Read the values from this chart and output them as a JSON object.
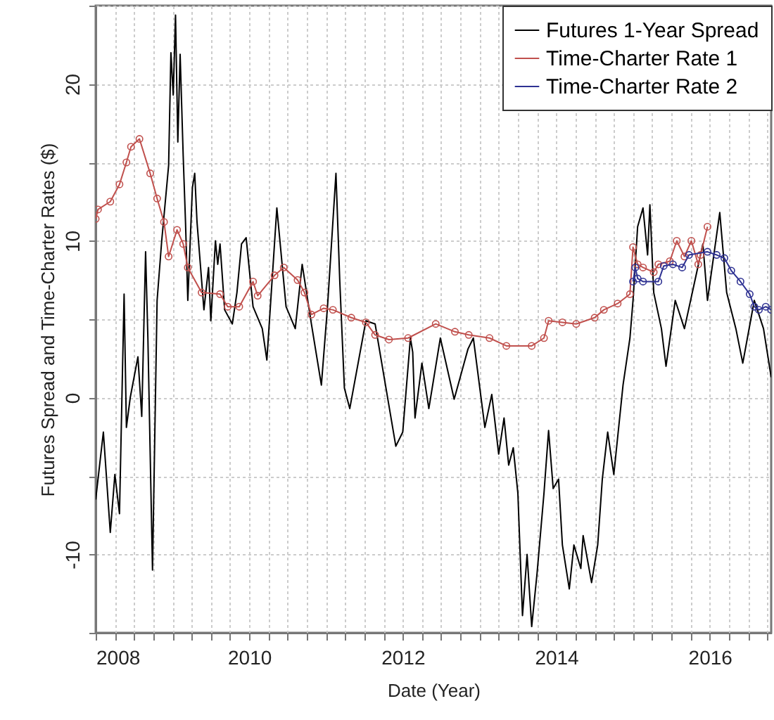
{
  "chart_data": {
    "type": "line",
    "xlabel": "Date (Year)",
    "ylabel": "Futures Spread and Time-Charter Rates ($)",
    "xlim": [
      2008,
      2016.8
    ],
    "ylim": [
      -15,
      25
    ],
    "xticks": [
      2008,
      {
        "value": 2008.25,
        "label": null
      },
      {
        "value": 2008.5,
        "label": null
      },
      {
        "value": 2008.75,
        "label": null
      },
      {
        "value": 2009,
        "label": null
      },
      {
        "value": 2009.25,
        "label": null
      },
      {
        "value": 2009.5,
        "label": null
      },
      {
        "value": 2009.75,
        "label": null
      },
      2010,
      {
        "value": 2010.25,
        "label": null
      },
      {
        "value": 2010.5,
        "label": null
      },
      {
        "value": 2010.75,
        "label": null
      },
      {
        "value": 2011,
        "label": null
      },
      {
        "value": 2011.25,
        "label": null
      },
      {
        "value": 2011.5,
        "label": null
      },
      {
        "value": 2011.75,
        "label": null
      },
      2012,
      {
        "value": 2012.25,
        "label": null
      },
      {
        "value": 2012.5,
        "label": null
      },
      {
        "value": 2012.75,
        "label": null
      },
      {
        "value": 2013,
        "label": null
      },
      {
        "value": 2013.25,
        "label": null
      },
      {
        "value": 2013.5,
        "label": null
      },
      {
        "value": 2013.75,
        "label": null
      },
      2014,
      {
        "value": 2014.25,
        "label": null
      },
      {
        "value": 2014.5,
        "label": null
      },
      {
        "value": 2014.75,
        "label": null
      },
      {
        "value": 2015,
        "label": null
      },
      {
        "value": 2015.25,
        "label": null
      },
      {
        "value": 2015.5,
        "label": null
      },
      {
        "value": 2015.75,
        "label": null
      },
      2016,
      {
        "value": 2016.25,
        "label": null
      },
      {
        "value": 2016.5,
        "label": null
      },
      {
        "value": 2016.75,
        "label": null
      }
    ],
    "yticks": [
      {
        "value": -15,
        "label": null
      },
      -10,
      {
        "value": -5,
        "label": null
      },
      0,
      {
        "value": 5,
        "label": null
      },
      10,
      {
        "value": 15,
        "label": null
      },
      20,
      {
        "value": 25,
        "label": null
      }
    ],
    "grid": true,
    "legend": "top right",
    "series": [
      {
        "name": "Futures 1-Year Spread",
        "color": "#000000",
        "marker": "none",
        "x": [
          2008.0,
          2008.1,
          2008.19,
          2008.25,
          2008.31,
          2008.37,
          2008.4,
          2008.45,
          2008.55,
          2008.6,
          2008.65,
          2008.68,
          2008.74,
          2008.8,
          2008.86,
          2008.95,
          2008.98,
          2009.01,
          2009.04,
          2009.07,
          2009.1,
          2009.14,
          2009.17,
          2009.2,
          2009.26,
          2009.29,
          2009.32,
          2009.41,
          2009.47,
          2009.5,
          2009.56,
          2009.59,
          2009.62,
          2009.68,
          2009.78,
          2009.84,
          2009.9,
          2009.96,
          2010.05,
          2010.17,
          2010.23,
          2010.36,
          2010.48,
          2010.6,
          2010.69,
          2010.81,
          2010.94,
          2011.02,
          2011.13,
          2011.18,
          2011.24,
          2011.31,
          2011.52,
          2011.64,
          2011.91,
          2012.0,
          2012.1,
          2012.13,
          2012.16,
          2012.25,
          2012.34,
          2012.49,
          2012.67,
          2012.85,
          2012.92,
          2013.07,
          2013.16,
          2013.25,
          2013.32,
          2013.38,
          2013.44,
          2013.5,
          2013.53,
          2013.56,
          2013.62,
          2013.68,
          2013.75,
          2013.84,
          2013.9,
          2013.96,
          2014.03,
          2014.08,
          2014.17,
          2014.23,
          2014.32,
          2014.35,
          2014.46,
          2014.54,
          2014.6,
          2014.67,
          2014.75,
          2014.87,
          2014.96,
          2015.0,
          2015.06,
          2015.13,
          2015.19,
          2015.22,
          2015.27,
          2015.37,
          2015.43,
          2015.55,
          2015.67,
          2015.79,
          2015.91,
          2015.97,
          2016.13,
          2016.22,
          2016.34,
          2016.43,
          2016.58,
          2016.7,
          2016.8
        ],
        "values": [
          -6.5,
          -2.2,
          -8.6,
          -4.9,
          -7.4,
          6.6,
          -1.9,
          0,
          2.6,
          -1.2,
          9.3,
          3.8,
          -11,
          6.2,
          10,
          14.8,
          22,
          19.3,
          24.4,
          16.3,
          21.9,
          15.4,
          11.2,
          6.2,
          13.4,
          14.3,
          11.2,
          5.6,
          8.3,
          4.9,
          10,
          8.5,
          9.8,
          5.6,
          4.7,
          6.7,
          9.8,
          10.2,
          5.8,
          4.4,
          2.4,
          12.1,
          5.8,
          4.4,
          8.5,
          4.7,
          0.8,
          5.8,
          14.3,
          7.4,
          0.6,
          -0.7,
          4.9,
          4.7,
          -3.1,
          -2.2,
          3.8,
          2.9,
          -1.3,
          2.2,
          -0.7,
          3.8,
          -0.1,
          3.1,
          3.8,
          -1.9,
          0.2,
          -3.6,
          -1.3,
          -4.3,
          -3.2,
          -6.1,
          -10,
          -13.9,
          -10,
          -14.6,
          -11.2,
          -6.1,
          -2.1,
          -5.8,
          -5.2,
          -9.4,
          -12.2,
          -9.4,
          -10.9,
          -8.8,
          -11.8,
          -9.4,
          -5.2,
          -2.2,
          -4.9,
          0.8,
          3.8,
          6.2,
          10.9,
          12.1,
          9.1,
          12.3,
          6.7,
          4.4,
          2.0,
          6.2,
          4.4,
          7.1,
          9.8,
          6.2,
          11.8,
          6.7,
          4.4,
          2.2,
          6.2,
          4.4,
          1.3
        ]
      },
      {
        "name": "Time-Charter Rate 1",
        "color": "#c0504d",
        "marker": "circle",
        "x": [
          2008.0,
          2008.03,
          2008.19,
          2008.31,
          2008.4,
          2008.46,
          2008.57,
          2008.71,
          2008.8,
          2008.89,
          2008.95,
          2009.06,
          2009.14,
          2009.2,
          2009.38,
          2009.62,
          2009.72,
          2009.87,
          2010.05,
          2010.11,
          2010.33,
          2010.45,
          2010.63,
          2010.72,
          2010.81,
          2010.97,
          2011.09,
          2011.33,
          2011.52,
          2011.64,
          2011.82,
          2012.07,
          2012.43,
          2012.68,
          2012.86,
          2013.13,
          2013.35,
          2013.68,
          2013.84,
          2013.9,
          2014.08,
          2014.26,
          2014.5,
          2014.62,
          2014.8,
          2014.96,
          2015.0,
          2015.06,
          2015.13,
          2015.27,
          2015.33,
          2015.48,
          2015.57,
          2015.67,
          2015.76,
          2015.85,
          2015.88,
          2015.97
        ],
        "values": [
          11.4,
          12,
          12.5,
          13.6,
          15,
          16,
          16.5,
          14.3,
          12.7,
          11.2,
          9,
          10.7,
          9.8,
          8.3,
          6.7,
          6.6,
          5.8,
          5.8,
          7.4,
          6.5,
          7.8,
          8.3,
          7.5,
          6.7,
          5.3,
          5.7,
          5.6,
          5.1,
          4.8,
          4.0,
          3.7,
          3.8,
          4.7,
          4.2,
          4.0,
          3.8,
          3.3,
          3.3,
          3.8,
          4.9,
          4.8,
          4.7,
          5.1,
          5.6,
          6.0,
          6.6,
          9.6,
          8.5,
          8.3,
          8.0,
          8.5,
          8.7,
          10.0,
          9.0,
          10.0,
          8.5,
          9.1,
          10.9
        ]
      },
      {
        "name": "Time-Charter Rate 2",
        "color": "#2e3192",
        "marker": "circle",
        "x": [
          2015.0,
          2015.03,
          2015.06,
          2015.13,
          2015.33,
          2015.4,
          2015.52,
          2015.64,
          2015.73,
          2015.97,
          2016.09,
          2016.19,
          2016.28,
          2016.4,
          2016.52,
          2016.58,
          2016.64,
          2016.73,
          2016.8
        ],
        "values": [
          7.4,
          8.3,
          7.6,
          7.4,
          7.4,
          8.4,
          8.5,
          8.3,
          9.1,
          9.3,
          9.1,
          8.9,
          8.1,
          7.4,
          6.6,
          5.8,
          5.6,
          5.8,
          5.6
        ]
      }
    ]
  }
}
